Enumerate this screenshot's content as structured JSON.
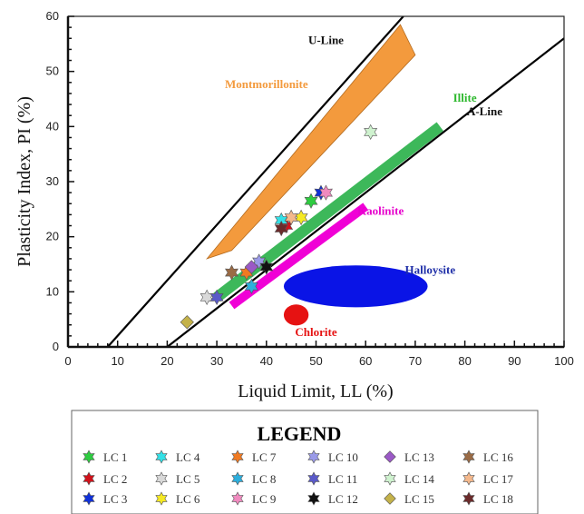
{
  "chart_data": {
    "type": "scatter",
    "title": "",
    "xlabel": "Liquid Limit, LL (%)",
    "ylabel": "Plasticity Index, PI (%)",
    "xlim": [
      0,
      100
    ],
    "ylim": [
      0,
      60
    ],
    "xticks": [
      "0",
      "10",
      "20",
      "30",
      "40",
      "50",
      "60",
      "70",
      "80",
      "90",
      "100"
    ],
    "yticks": [
      "0",
      "10",
      "20",
      "30",
      "40",
      "50",
      "60"
    ],
    "grid": false,
    "legend_position": "bottom",
    "legend_title": "LEGEND",
    "lines": [
      {
        "name": "U-Line",
        "points": [
          [
            8,
            0
          ],
          [
            67.6,
            60
          ]
        ],
        "color": "#000000",
        "label_at": [
          52,
          55
        ]
      },
      {
        "name": "A-Line",
        "points": [
          [
            20,
            0
          ],
          [
            100,
            56
          ]
        ],
        "color": "#000000",
        "label_at": [
          84,
          42
        ]
      }
    ],
    "zones": [
      {
        "name": "Montmorillonite",
        "shape": "polygon",
        "color": "#F39A3D",
        "label_color": "#F39A3D",
        "points": [
          [
            28,
            16
          ],
          [
            33,
            17.5
          ],
          [
            70,
            53
          ],
          [
            67,
            58.5
          ]
        ],
        "label_at": [
          40,
          47
        ]
      },
      {
        "name": "Illite",
        "shape": "band",
        "color": "#3DB85A",
        "label_color": "#2EB82E",
        "points": [
          [
            30,
            9
          ],
          [
            75,
            40
          ]
        ],
        "width": 2.0,
        "label_at": [
          80,
          44.5
        ]
      },
      {
        "name": "Kaolinite",
        "shape": "band",
        "color": "#F000D6",
        "label_color": "#E600CC",
        "points": [
          [
            33,
            7.5
          ],
          [
            60,
            25.5
          ]
        ],
        "width": 1.6,
        "label_at": [
          63,
          24
        ]
      },
      {
        "name": "Halloysite",
        "shape": "ellipse",
        "color": "#0A14E6",
        "label_color": "#1F2FA8",
        "center": [
          58,
          11
        ],
        "rx": 14.5,
        "ry": 3.8,
        "label_at": [
          73,
          13.3
        ]
      },
      {
        "name": "Chlorite",
        "shape": "ellipse",
        "color": "#E61212",
        "label_color": "#E61212",
        "center": [
          46,
          5.8
        ],
        "rx": 2.5,
        "ry": 1.9,
        "label_at": [
          50,
          2
        ]
      }
    ],
    "series": [
      {
        "name": "LC 1",
        "color": "#2ECC40",
        "x": 49,
        "y": 26.5
      },
      {
        "name": "LC 2",
        "color": "#D0111A",
        "x": 44,
        "y": 22
      },
      {
        "name": "LC 3",
        "color": "#1030D8",
        "x": 51,
        "y": 28
      },
      {
        "name": "LC 4",
        "color": "#33E0E6",
        "x": 43,
        "y": 23
      },
      {
        "name": "LC 5",
        "color": "#D9D9D9",
        "x": 28,
        "y": 9
      },
      {
        "name": "LC 6",
        "color": "#F5E923",
        "x": 47,
        "y": 23.5
      },
      {
        "name": "LC 7",
        "color": "#F07A22",
        "x": 36,
        "y": 13.5
      },
      {
        "name": "LC 8",
        "color": "#2DAEDC",
        "x": 37,
        "y": 11
      },
      {
        "name": "LC 9",
        "color": "#F08ABF",
        "x": 52,
        "y": 28
      },
      {
        "name": "LC 10",
        "color": "#9A9AE8",
        "x": 38.5,
        "y": 15.5
      },
      {
        "name": "LC 11",
        "color": "#5A5AC8",
        "x": 30,
        "y": 9
      },
      {
        "name": "LC 12",
        "color": "#111111",
        "x": 40,
        "y": 14.5
      },
      {
        "name": "LC 13",
        "color": "#9B59C6",
        "x": 37,
        "y": 14.5
      },
      {
        "name": "LC 14",
        "color": "#CFF2CF",
        "x": 61,
        "y": 39
      },
      {
        "name": "LC 15",
        "color": "#C4B24A",
        "x": 24,
        "y": 4.5
      },
      {
        "name": "LC 16",
        "color": "#9A6B45",
        "x": 33,
        "y": 13.5
      },
      {
        "name": "LC 17",
        "color": "#F4B88C",
        "x": 45,
        "y": 23.5
      },
      {
        "name": "LC 18",
        "color": "#6B2B2B",
        "x": 43,
        "y": 21.5
      }
    ]
  }
}
